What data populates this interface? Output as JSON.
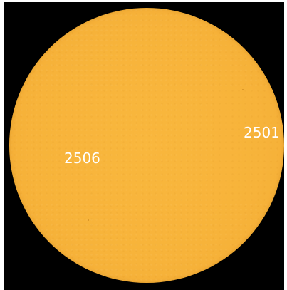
{
  "image": {
    "regions": [
      {
        "label": "2506"
      },
      {
        "label": "2501"
      }
    ],
    "colors": {
      "background": "#000000",
      "sun_disk": "#f7b33a",
      "label": "#ffffff"
    }
  }
}
